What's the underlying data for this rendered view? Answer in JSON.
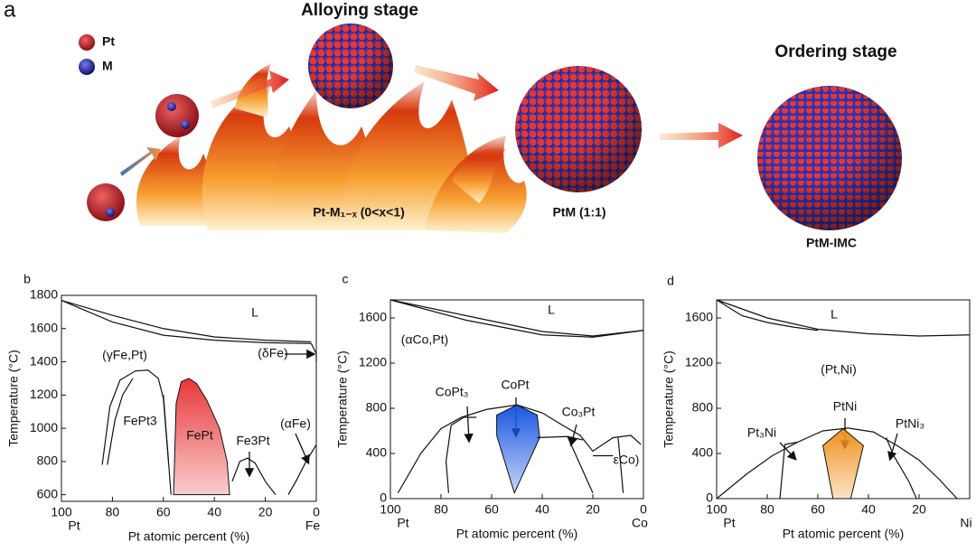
{
  "panel_a": {
    "label": "a",
    "legend": [
      "Pt",
      "M"
    ],
    "stages": [
      "Alloying stage",
      "Ordering stage"
    ],
    "captions": [
      "Pt-M₁₋ₓ (0<x<1)",
      "PtM (1:1)",
      "PtM-IMC"
    ]
  },
  "chart_data": [
    {
      "type": "line",
      "panel_label": "b",
      "xlabel": "Pt atomic percent (%)",
      "ylabel": "Temperature (°C)",
      "xlim": [
        100,
        0
      ],
      "ylim": [
        560,
        1800
      ],
      "xticks": [
        100,
        80,
        60,
        40,
        20,
        0
      ],
      "yticks": [
        600,
        800,
        1000,
        1200,
        1400,
        1600,
        1800
      ],
      "end_labels": [
        "Pt",
        "Fe"
      ],
      "annotations": [
        "L",
        "(γFe,Pt)",
        "(δFe)",
        "(αFe)",
        "FePt3",
        "FePt",
        "Fe3Pt"
      ],
      "curves": [
        {
          "x": [
            100,
            80,
            60,
            40,
            20,
            2
          ],
          "y": [
            1770,
            1680,
            1600,
            1550,
            1530,
            1520
          ]
        },
        {
          "x": [
            100,
            80,
            60,
            40,
            20,
            2
          ],
          "y": [
            1770,
            1640,
            1560,
            1530,
            1515,
            1510
          ]
        },
        {
          "x": [
            84,
            81,
            77,
            71,
            66,
            62,
            60,
            58
          ],
          "y": [
            780,
            1130,
            1290,
            1345,
            1350,
            1300,
            1180,
            800
          ]
        },
        {
          "x": [
            82,
            79,
            76,
            72
          ],
          "y": [
            780,
            1050,
            1200,
            1300
          ]
        },
        {
          "x": [
            60,
            59,
            58,
            57
          ],
          "y": [
            1200,
            1000,
            800,
            600
          ]
        },
        {
          "x": [
            33,
            30,
            27,
            24,
            20,
            16
          ],
          "y": [
            680,
            800,
            820,
            790,
            680,
            600
          ]
        },
        {
          "x": [
            0,
            4,
            8,
            11
          ],
          "y": [
            900,
            800,
            680,
            600
          ]
        },
        {
          "x": [
            2,
            0,
            0
          ],
          "y": [
            1510,
            1450,
            1400
          ]
        }
      ],
      "regions": [
        {
          "color": "#e8383a",
          "x": [
            56,
            55,
            53,
            50,
            47,
            43,
            38,
            35,
            34
          ],
          "y": [
            600,
            1150,
            1280,
            1300,
            1270,
            1170,
            1000,
            800,
            600
          ]
        }
      ]
    },
    {
      "type": "line",
      "panel_label": "c",
      "xlabel": "Pt atomic percent (%)",
      "ylabel": "Temperature (°C)",
      "xlim": [
        100,
        0
      ],
      "ylim": [
        0,
        1760
      ],
      "xticks": [
        100,
        80,
        60,
        40,
        20,
        0
      ],
      "yticks": [
        0,
        400,
        800,
        1200,
        1600
      ],
      "end_labels": [
        "Pt",
        "Co"
      ],
      "annotations": [
        "L",
        "(αCo,Pt)",
        "CoPt₃",
        "CoPt",
        "Co₃Pt",
        "εCo)"
      ],
      "curves": [
        {
          "x": [
            100,
            70,
            40,
            20,
            0
          ],
          "y": [
            1760,
            1620,
            1480,
            1440,
            1490
          ]
        },
        {
          "x": [
            100,
            70,
            40,
            20,
            0
          ],
          "y": [
            1760,
            1580,
            1450,
            1430,
            1490
          ]
        },
        {
          "x": [
            97,
            88,
            80,
            72,
            62,
            50,
            40,
            32,
            25,
            20,
            12,
            5,
            1
          ],
          "y": [
            50,
            400,
            620,
            720,
            790,
            830,
            760,
            650,
            560,
            420,
            540,
            560,
            480
          ]
        },
        {
          "x": [
            77,
            78,
            76,
            71,
            66
          ],
          "y": [
            50,
            330,
            650,
            720,
            720
          ]
        },
        {
          "x": [
            42,
            30,
            24
          ],
          "y": [
            540,
            550,
            520
          ]
        },
        {
          "x": [
            30,
            27,
            24,
            20
          ],
          "y": [
            550,
            400,
            250,
            50
          ]
        },
        {
          "x": [
            20,
            12
          ],
          "y": [
            380,
            380
          ]
        },
        {
          "x": [
            10,
            8
          ],
          "y": [
            540,
            50
          ]
        }
      ],
      "regions": [
        {
          "color": "#1a56e0",
          "x": [
            51,
            58,
            58,
            50,
            42,
            41,
            51
          ],
          "y": [
            50,
            560,
            740,
            830,
            740,
            540,
            50
          ]
        }
      ]
    },
    {
      "type": "line",
      "panel_label": "d",
      "xlabel": "Pt atomic percent (%)",
      "ylabel": "Temperature (°C)",
      "xlim": [
        100,
        0
      ],
      "ylim": [
        0,
        1760
      ],
      "xticks": [
        100,
        80,
        60,
        40,
        20
      ],
      "yticks": [
        0,
        400,
        800,
        1200,
        1600
      ],
      "end_labels": [
        "Pt",
        "Ni"
      ],
      "annotations": [
        "L",
        "(Pt,Ni)",
        "Pt₃Ni",
        "PtNi",
        "PtNi₃"
      ],
      "curves": [
        {
          "x": [
            100,
            80,
            60,
            40,
            20,
            0
          ],
          "y": [
            1760,
            1600,
            1500,
            1460,
            1440,
            1450
          ]
        },
        {
          "x": [
            100,
            90,
            80,
            70,
            60
          ],
          "y": [
            1760,
            1620,
            1560,
            1520,
            1490
          ]
        },
        {
          "x": [
            100,
            88,
            78,
            68,
            58,
            48,
            38,
            28,
            20,
            12,
            5
          ],
          "y": [
            0,
            220,
            380,
            500,
            600,
            625,
            590,
            460,
            340,
            170,
            0
          ]
        },
        {
          "x": [
            75,
            73,
            68
          ],
          "y": [
            0,
            480,
            500
          ]
        },
        {
          "x": [
            33,
            30,
            24,
            21
          ],
          "y": [
            540,
            380,
            150,
            0
          ]
        }
      ],
      "regions": [
        {
          "color": "#f0901c",
          "x": [
            54,
            58,
            50,
            42,
            47,
            54
          ],
          "y": [
            0,
            470,
            620,
            470,
            0,
            0
          ]
        }
      ]
    }
  ]
}
